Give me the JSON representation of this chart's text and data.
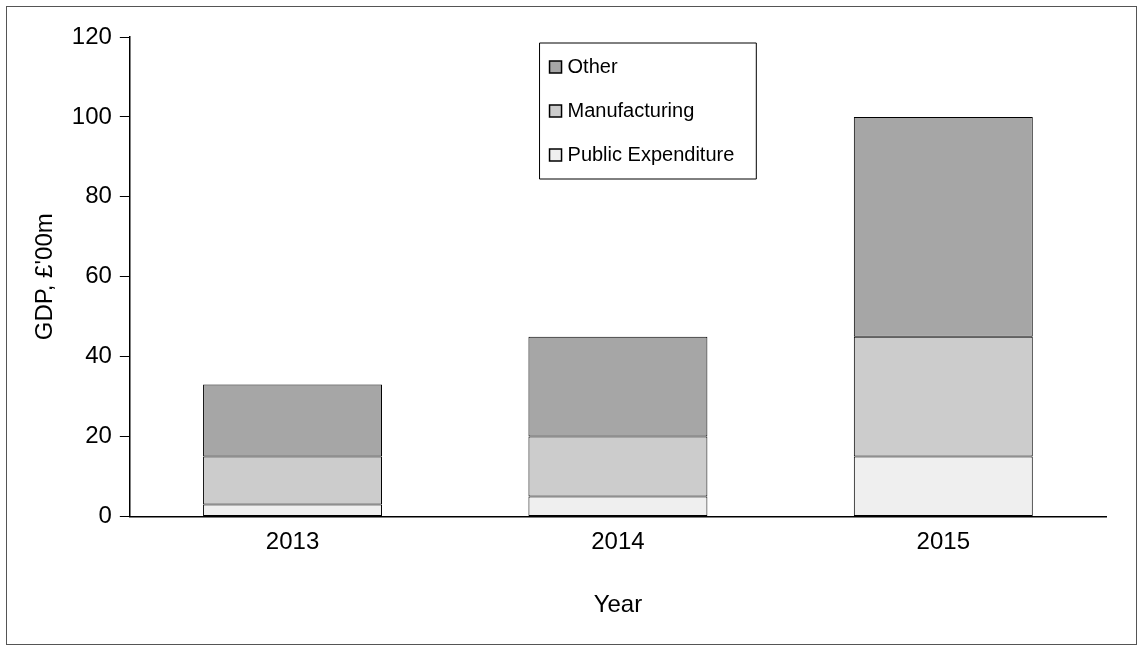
{
  "chart_data": {
    "type": "bar",
    "stacked": true,
    "xlabel": "Year",
    "ylabel": "GDP, £'00m",
    "categories": [
      "2013",
      "2014",
      "2015"
    ],
    "series": [
      {
        "name": "Public Expenditure",
        "color": "#efefef",
        "values": [
          3,
          5,
          15
        ]
      },
      {
        "name": "Manufacturing",
        "color": "#cccccc",
        "values": [
          12,
          15,
          30
        ]
      },
      {
        "name": "Other",
        "color": "#a6a6a6",
        "values": [
          18,
          25,
          55
        ]
      }
    ],
    "ylim": [
      0,
      120
    ],
    "yticks": [
      0,
      20,
      40,
      60,
      80,
      100,
      120
    ],
    "grid": false,
    "legend": "top"
  }
}
